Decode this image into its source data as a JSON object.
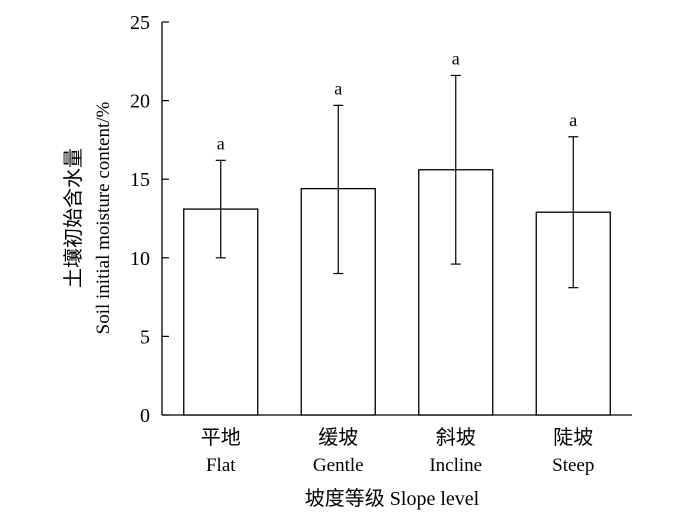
{
  "chart_data": {
    "type": "bar",
    "categories": [
      {
        "zh": "平地",
        "en": "Flat"
      },
      {
        "zh": "缓坡",
        "en": "Gentle"
      },
      {
        "zh": "斜坡",
        "en": "Incline"
      },
      {
        "zh": "陡坡",
        "en": "Steep"
      }
    ],
    "values": [
      13.1,
      14.4,
      15.6,
      12.9
    ],
    "error_upper": [
      16.2,
      19.7,
      21.6,
      17.7
    ],
    "error_lower": [
      10.0,
      9.0,
      9.6,
      8.1
    ],
    "significance_labels": [
      "a",
      "a",
      "a",
      "a"
    ],
    "xlabel": "坡度等级 Slope level",
    "ylabel_zh": "土壤初始含水量",
    "ylabel_en": "Soil initial moisture content/%",
    "ylim": [
      0,
      25
    ],
    "yticks": [
      0,
      5,
      10,
      15,
      20,
      25
    ],
    "grid": false,
    "colors": {
      "bar_fill": "#ffffff",
      "stroke": "#000000"
    }
  }
}
